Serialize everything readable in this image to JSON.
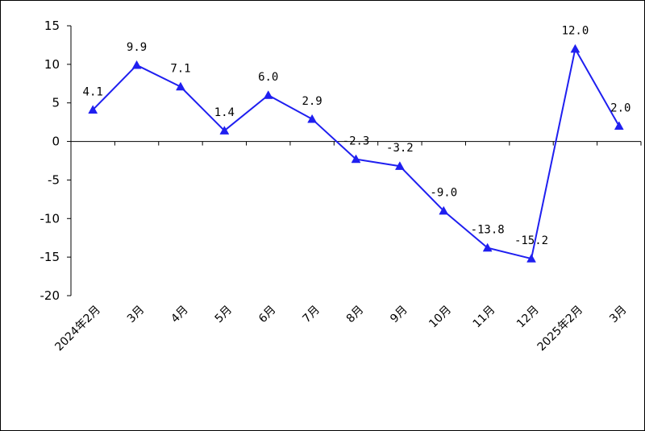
{
  "chart_data": {
    "type": "line",
    "title": "",
    "xlabel": "",
    "ylabel": "",
    "categories": [
      "2024年2月",
      "3月",
      "4月",
      "5月",
      "6月",
      "7月",
      "8月",
      "9月",
      "10月",
      "11月",
      "12月",
      "2025年2月",
      "3月"
    ],
    "series": [
      {
        "name": "",
        "color": "#1f1ff0",
        "marker": "triangle",
        "values": [
          4.1,
          9.9,
          7.1,
          1.4,
          6.0,
          2.9,
          -2.3,
          -3.2,
          -9.0,
          -13.8,
          -15.2,
          12.0,
          2.0
        ],
        "labels": [
          "4.1",
          "9.9",
          "7.1",
          "1.4",
          "6.0",
          "2.9",
          "-2.3",
          "-3.2",
          "-9.0",
          "-13.8",
          "-15.2",
          "12.0",
          "2.0"
        ]
      }
    ],
    "ylim": [
      -20,
      15
    ],
    "yticks": [
      15,
      10,
      5,
      0,
      -5,
      -10,
      -15,
      -20
    ],
    "ytick_labels": [
      "15",
      "10",
      "5",
      "0",
      "-5",
      "-10",
      "-15",
      "-20"
    ],
    "grid": false,
    "legend": "none"
  }
}
